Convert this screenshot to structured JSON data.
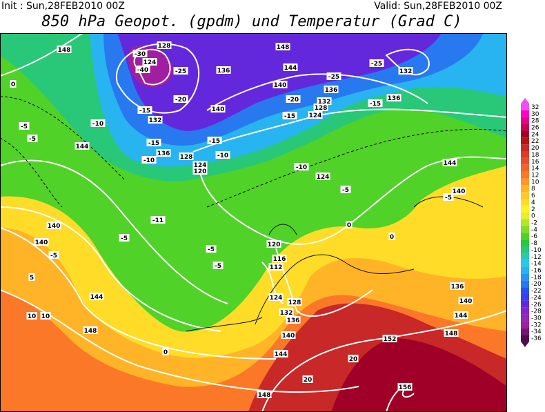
{
  "header": {
    "init": "Init : Sun,28FEB2010 00Z",
    "valid": "Valid: Sun,28FEB2010 00Z",
    "title": "850 hPa Geopot. (gpdm) und Temperatur (Grad C)"
  },
  "colorbar": {
    "labels": [
      32,
      30,
      28,
      26,
      24,
      22,
      20,
      18,
      16,
      14,
      12,
      10,
      8,
      6,
      4,
      2,
      0,
      -2,
      -4,
      -6,
      -8,
      -10,
      -12,
      -14,
      -16,
      -18,
      -20,
      -22,
      -24,
      -26,
      -28,
      -30,
      -32,
      -34,
      -36
    ],
    "colors": [
      "#f050f0",
      "#ff00c8",
      "#e6008c",
      "#c80050",
      "#a00028",
      "#b41414",
      "#c82828",
      "#dc3c28",
      "#e65028",
      "#f06428",
      "#fa7828",
      "#ff9628",
      "#ffb428",
      "#ffc828",
      "#ffdc28",
      "#fff028",
      "#e6f028",
      "#b4e628",
      "#82dc28",
      "#50d228",
      "#28c83c",
      "#28c878",
      "#28c8b4",
      "#28c8e6",
      "#28b4f0",
      "#2896f0",
      "#2878f0",
      "#2850f0",
      "#3c3cf0",
      "#6428dc",
      "#8228c8",
      "#9628b4",
      "#a01ea0",
      "#781478",
      "#500a50"
    ]
  },
  "map": {
    "contour_labels": [
      148,
      128,
      124,
      -40,
      -30,
      -25,
      136,
      140,
      148,
      144,
      -25,
      -25,
      132,
      140,
      136,
      132,
      128,
      124,
      136,
      -20,
      -15,
      -15,
      -10,
      124,
      -5,
      144,
      140,
      -5,
      0,
      0,
      120,
      116,
      112,
      124,
      128,
      132,
      136,
      140,
      144,
      148,
      152,
      156,
      148,
      144,
      140,
      136,
      0,
      20,
      20,
      10,
      10,
      148,
      144,
      140,
      140,
      -5,
      5,
      0,
      -5,
      -5,
      144,
      -10,
      -15,
      -20,
      -15,
      132,
      136,
      128,
      124,
      120,
      -10,
      -10,
      -15,
      -11,
      -5,
      -5,
      -5
    ]
  }
}
